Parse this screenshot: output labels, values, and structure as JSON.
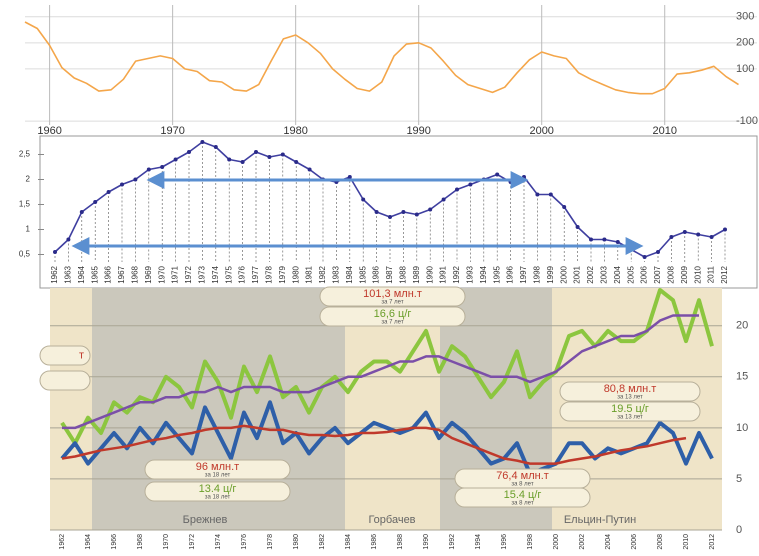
{
  "chart_data": [
    {
      "type": "line",
      "x": [
        1958,
        1959,
        1960,
        1961,
        1962,
        1963,
        1964,
        1965,
        1966,
        1967,
        1968,
        1969,
        1970,
        1971,
        1972,
        1973,
        1974,
        1975,
        1976,
        1977,
        1978,
        1979,
        1980,
        1981,
        1982,
        1983,
        1984,
        1985,
        1986,
        1987,
        1988,
        1989,
        1990,
        1991,
        1992,
        1993,
        1994,
        1995,
        1996,
        1997,
        1998,
        1999,
        2000,
        2001,
        2002,
        2003,
        2004,
        2005,
        2006,
        2007,
        2008,
        2009,
        2010,
        2011,
        2012,
        2013,
        2014,
        2015,
        2016
      ],
      "series": [
        {
          "color": "#f4a64a",
          "values": [
            280,
            255,
            190,
            105,
            65,
            45,
            15,
            20,
            60,
            130,
            140,
            150,
            140,
            100,
            90,
            55,
            50,
            20,
            15,
            40,
            130,
            215,
            230,
            200,
            160,
            100,
            60,
            25,
            15,
            50,
            150,
            195,
            200,
            180,
            130,
            75,
            40,
            25,
            10,
            30,
            85,
            135,
            165,
            150,
            140,
            85,
            60,
            40,
            20,
            10,
            5,
            5,
            25,
            80,
            85,
            95,
            110,
            70,
            40
          ]
        }
      ],
      "xlim": [
        1958,
        2017.5
      ],
      "ylim": [
        -115,
        345
      ],
      "xticks": [
        1960,
        1970,
        1980,
        1990,
        2000,
        2010
      ],
      "yticks": [
        300,
        200,
        100,
        -100
      ],
      "grid": true
    },
    {
      "type": "line",
      "categories": [
        "1962",
        "1963",
        "1964",
        "1965",
        "1966",
        "1967",
        "1968",
        "1969",
        "1970",
        "1971",
        "1972",
        "1973",
        "1974",
        "1975",
        "1976",
        "1977",
        "1978",
        "1979",
        "1980",
        "1981",
        "1982",
        "1983",
        "1984",
        "1985",
        "1986",
        "1987",
        "1988",
        "1989",
        "1990",
        "1991",
        "1992",
        "1993",
        "1994",
        "1995",
        "1996",
        "1997",
        "1998",
        "1999",
        "2000",
        "2001",
        "2002",
        "2003",
        "2004",
        "2005",
        "2006",
        "2007",
        "2008",
        "2009",
        "2010",
        "2011",
        "2012"
      ],
      "series": [
        {
          "color": "#3f3fa0",
          "values": [
            0.55,
            0.8,
            1.35,
            1.55,
            1.75,
            1.9,
            2.0,
            2.2,
            2.25,
            2.4,
            2.55,
            2.75,
            2.65,
            2.4,
            2.35,
            2.55,
            2.45,
            2.5,
            2.35,
            2.2,
            2.0,
            1.95,
            2.05,
            1.6,
            1.35,
            1.25,
            1.35,
            1.3,
            1.4,
            1.6,
            1.8,
            1.9,
            2.0,
            2.1,
            1.95,
            2.05,
            1.7,
            1.7,
            1.45,
            1.05,
            0.8,
            0.8,
            0.75,
            0.6,
            0.45,
            0.55,
            0.85,
            0.95,
            0.9,
            0.85,
            1.0
          ]
        }
      ],
      "ylim": [
        0.35,
        2.85
      ],
      "yticks": [
        {
          "value": 2.5,
          "label": "2,5"
        },
        2,
        {
          "value": 1.5,
          "label": "1,5"
        },
        1,
        {
          "value": 0.5,
          "label": "0,5"
        }
      ],
      "grid": false
    },
    {
      "type": "line",
      "categories": [
        "1962",
        null,
        "1964",
        null,
        "1966",
        null,
        "1968",
        null,
        "1970",
        null,
        "1972",
        null,
        "1974",
        null,
        "1976",
        null,
        "1978",
        null,
        "1980",
        null,
        "1982",
        null,
        "1984",
        null,
        "1986",
        null,
        "1988",
        null,
        "1990",
        null,
        "1992",
        null,
        "1994",
        null,
        "1996",
        null,
        "1998",
        null,
        "2000",
        null,
        "2002",
        null,
        "2004",
        null,
        "2006",
        null,
        "2008",
        null,
        "2010",
        null,
        "2012"
      ],
      "series": [
        {
          "color": "#8cc63f",
          "width": 4,
          "values": [
            10.5,
            8.5,
            11,
            9.5,
            12.5,
            11.5,
            13,
            12.5,
            15,
            14,
            12,
            16.5,
            14.5,
            11,
            16,
            13.5,
            17,
            13,
            14,
            11.5,
            14,
            15,
            13.5,
            15.5,
            16.5,
            16.5,
            15.5,
            17.5,
            19.5,
            15.5,
            18,
            17,
            15,
            13,
            14.5,
            17.5,
            13,
            14.5,
            15.5,
            19,
            19.5,
            18,
            19.5,
            18.5,
            18.5,
            19.5,
            23.5,
            22.5,
            18.5,
            22.5,
            18
          ]
        },
        {
          "color": "#2e5fa8",
          "width": 4,
          "values": [
            7,
            8.5,
            6.5,
            8,
            9.5,
            8,
            10,
            8.5,
            10.5,
            9,
            7.5,
            12,
            9.5,
            7,
            11.5,
            9,
            12.5,
            8.5,
            9.5,
            7.5,
            9,
            10,
            8.5,
            9.5,
            10.5,
            10,
            9.5,
            10,
            11.5,
            9,
            10.5,
            9.5,
            8,
            6.5,
            7,
            8.5,
            5.5,
            6,
            6.5,
            8.5,
            8.5,
            7,
            8,
            7.5,
            8,
            8.5,
            10.5,
            9.5,
            6.5,
            9.5,
            7
          ]
        },
        {
          "color": "#c0392b",
          "width": 2.5,
          "values": [
            7,
            7.2,
            7.5,
            7.8,
            8,
            8.2,
            8.5,
            8.8,
            9,
            9.3,
            9.5,
            9.8,
            10,
            10,
            10.2,
            10,
            9.8,
            9.8,
            9.5,
            9.3,
            9.3,
            9.2,
            9.3,
            9.5,
            9.5,
            9.6,
            9.8,
            10,
            10,
            9.8,
            9,
            8.5,
            8,
            7.5,
            7,
            6.8,
            6.5,
            6.5,
            6.5,
            6.8,
            7,
            7.2,
            7.5,
            7.8,
            8,
            8.2,
            8.5,
            8.8,
            9,
            null,
            null
          ]
        },
        {
          "color": "#7b4fa8",
          "width": 2.5,
          "values": [
            10,
            10,
            10.5,
            11,
            11.5,
            12,
            12.5,
            12.5,
            13,
            13,
            13.5,
            13.5,
            14,
            13.5,
            14,
            14,
            14,
            13.5,
            13.5,
            13.5,
            14,
            14.5,
            15,
            15,
            15.5,
            16,
            16.5,
            16.5,
            17,
            17,
            16.5,
            16,
            15.5,
            15,
            15,
            15,
            14.5,
            15,
            15.5,
            16.5,
            17.5,
            18,
            18.5,
            19,
            19,
            19.5,
            20.5,
            21,
            21,
            21,
            null
          ]
        }
      ],
      "ylim": [
        0,
        23.5
      ],
      "yticks": [
        0,
        5,
        10,
        15,
        20
      ],
      "grid": true,
      "periods": [
        "Брежнев",
        "Горбачев",
        "Ельцин-Путин"
      ],
      "annotations": [
        {
          "text": "101,3 млн.т",
          "sub": "за 7 лет",
          "color": "#c0392b"
        },
        {
          "text": "16,6 ц/г",
          "sub": "за 7 лет",
          "color": "#6a9e2a"
        },
        {
          "text": "80,8 млн.т",
          "sub": "за 13 лет",
          "color": "#c0392b"
        },
        {
          "text": "19.5 ц/г",
          "sub": "за 13 лет",
          "color": "#6a9e2a"
        },
        {
          "text": "96 млн.т",
          "sub": "за 18 лет",
          "color": "#c0392b"
        },
        {
          "text": "13.4 ц/г",
          "sub": "за 18 лет",
          "color": "#6a9e2a"
        },
        {
          "text": "76,4 млн.т",
          "sub": "за 8 лет",
          "color": "#c0392b"
        },
        {
          "text": "15.4 ц/г",
          "sub": "за 8 лет",
          "color": "#6a9e2a"
        },
        {
          "text": "т",
          "color": "#c0392b"
        }
      ]
    }
  ]
}
